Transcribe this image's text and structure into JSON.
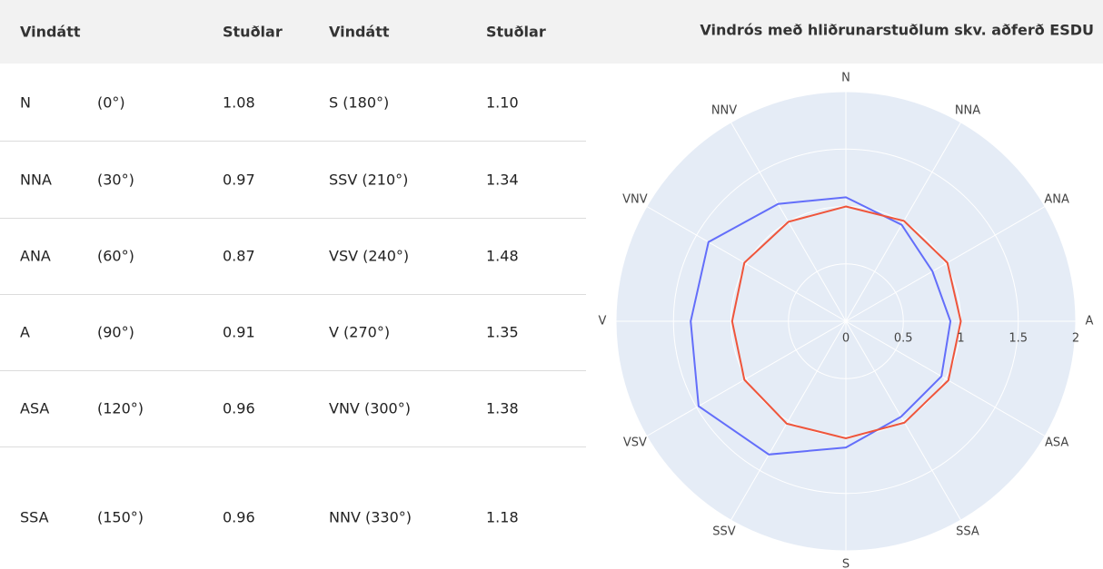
{
  "table": {
    "header": [
      "Vindátt",
      "Stuðlar",
      "Vindátt",
      "Stuðlar"
    ],
    "rows": [
      [
        "N",
        "(0°)",
        "1.08",
        "S (180°)",
        "1.10"
      ],
      [
        "NNA",
        "(30°)",
        "0.97",
        "SSV (210°)",
        "1.34"
      ],
      [
        "ANA",
        "(60°)",
        "0.87",
        "VSV (240°)",
        "1.48"
      ],
      [
        "A",
        "(90°)",
        "0.91",
        "V (270°)",
        "1.35"
      ],
      [
        "ASA",
        "(120°)",
        "0.96",
        "VNV (300°)",
        "1.38"
      ],
      [
        "SSA",
        "(150°)",
        "0.96",
        "NNV (330°)",
        "1.18"
      ]
    ]
  },
  "chart_data": {
    "type": "polar",
    "title": "Vindrós með hliðrunarstuðlum skv. aðferð ESDU",
    "categories": [
      "N",
      "NNA",
      "ANA",
      "A",
      "ASA",
      "SSA",
      "S",
      "SSV",
      "VSV",
      "V",
      "VNV",
      "NNV"
    ],
    "series": [
      {
        "color": "#636efa",
        "values": [
          1.08,
          0.97,
          0.87,
          0.91,
          0.96,
          0.96,
          1.1,
          1.34,
          1.48,
          1.35,
          1.38,
          1.18
        ]
      },
      {
        "color": "#ef553b",
        "values": [
          1.0,
          1.01,
          1.02,
          1.0,
          1.03,
          1.02,
          1.02,
          1.03,
          1.02,
          0.99,
          1.02,
          1.0
        ]
      }
    ],
    "rlim": [
      0,
      2
    ],
    "rticks": [
      0,
      0.5,
      1,
      1.5,
      2
    ],
    "grid": true
  }
}
